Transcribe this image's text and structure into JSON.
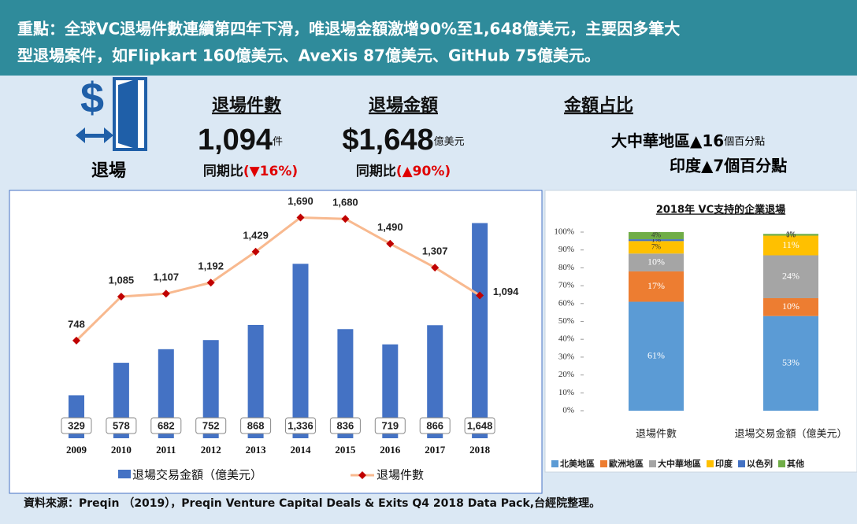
{
  "header": {
    "lines": [
      "重點：全球VC退場件數連續第四年下滑，唯退場金額激增90%至1,648億美元，主要因多筆大",
      "型退場案件，如Flipkart 160億美元、AveXis 87億美元、GitHub 75億美元。"
    ]
  },
  "icon_label": "退場",
  "stats": [
    {
      "title": "退場件數",
      "value": "1,094",
      "unit": "件",
      "compare": "同期比",
      "change": "(▼16%)"
    },
    {
      "title": "退場金額",
      "value": "$1,648",
      "unit": "億美元",
      "compare": "同期比",
      "change": "(▲90%)"
    }
  ],
  "share": {
    "title": "金額占比",
    "line1": "大中華地區▲16",
    "line1_unit": "個百分點",
    "line2": "印度▲7個百分點"
  },
  "source": "資料來源：Preqin （2019），Preqin Venture Capital Deals & Exits Q4 2018 Data Pack,台經院整理。",
  "chart_data": [
    {
      "type": "combo",
      "categories": [
        "2009",
        "2010",
        "2011",
        "2012",
        "2013",
        "2014",
        "2015",
        "2016",
        "2017",
        "2018"
      ],
      "ylim": [
        0,
        1850
      ],
      "series": [
        {
          "name": "退場交易金額（億美元）",
          "type": "bar",
          "color": "#4472c4",
          "values": [
            329,
            578,
            682,
            752,
            868,
            1336,
            836,
            719,
            866,
            1648
          ],
          "value_labels": [
            "329",
            "578",
            "682",
            "752",
            "868",
            "1,336",
            "836",
            "719",
            "866",
            "1,648"
          ]
        },
        {
          "name": "退場件數",
          "type": "line",
          "color": "#f8b98f",
          "marker_color": "#c00000",
          "values": [
            748,
            1085,
            1107,
            1192,
            1429,
            1690,
            1680,
            1490,
            1307,
            1094
          ],
          "value_labels": [
            "748",
            "1,085",
            "1,107",
            "1,192",
            "1,429",
            "1,690",
            "1,680",
            "1,490",
            "1,307",
            "1,094"
          ]
        }
      ]
    },
    {
      "type": "stacked",
      "title": "2018年 VC支持的企業退場",
      "categories": [
        "退場件數",
        "退場交易金額（億美元）"
      ],
      "ylim": [
        0,
        100
      ],
      "yticks": [
        {
          "value": 0,
          "label": "0%"
        },
        {
          "value": 10,
          "label": "10%"
        },
        {
          "value": 20,
          "label": "20%"
        },
        {
          "value": 30,
          "label": "30%"
        },
        {
          "value": 40,
          "label": "40%"
        },
        {
          "value": 50,
          "label": "50%"
        },
        {
          "value": 60,
          "label": "60%"
        },
        {
          "value": 70,
          "label": "70%"
        },
        {
          "value": 80,
          "label": "80%"
        },
        {
          "value": 90,
          "label": "90%"
        },
        {
          "value": 100,
          "label": "100%"
        }
      ],
      "series": [
        {
          "name": "北美地區",
          "color": "#5b9bd5",
          "values": [
            61,
            53
          ],
          "value_labels": [
            "61%",
            "53%"
          ]
        },
        {
          "name": "歐洲地區",
          "color": "#ed7d31",
          "values": [
            17,
            10
          ],
          "value_labels": [
            "17%",
            "10%"
          ]
        },
        {
          "name": "大中華地區",
          "color": "#a5a5a5",
          "values": [
            10,
            24
          ],
          "value_labels": [
            "10%",
            "24%"
          ]
        },
        {
          "name": "印度",
          "color": "#ffc000",
          "values": [
            7,
            11
          ],
          "value_labels": [
            "7%",
            "11%"
          ]
        },
        {
          "name": "以色列",
          "color": "#4472c4",
          "values": [
            1,
            0
          ],
          "value_labels": [
            "1%",
            "0%"
          ]
        },
        {
          "name": "其他",
          "color": "#70ad47",
          "values": [
            4,
            1
          ],
          "value_labels": [
            "4%",
            "1%"
          ]
        }
      ]
    }
  ]
}
